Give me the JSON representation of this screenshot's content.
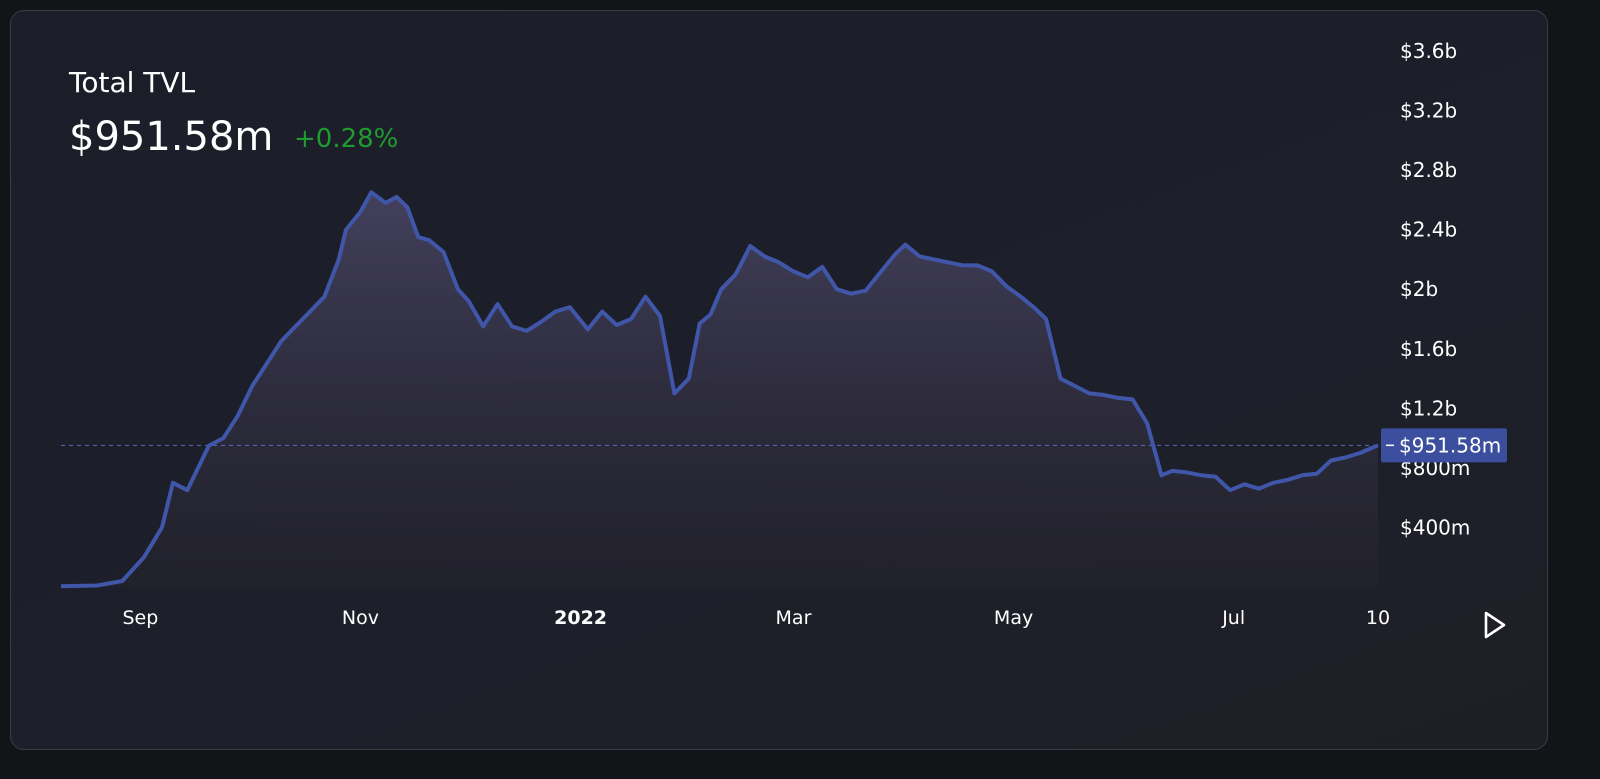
{
  "header": {
    "title": "Total TVL",
    "value": "$951.58m",
    "change": "+0.28%"
  },
  "colors": {
    "line": "#4056a8",
    "positive": "#1f9b2f",
    "label_bg": "#3c4f9f"
  },
  "current_label": "$951.58m",
  "icons": {
    "play": "play-icon"
  },
  "chart_data": {
    "type": "area",
    "title": "Total TVL",
    "ylim": [
      0,
      3600000000
    ],
    "y_ticks": [
      "$3.6b",
      "$3.2b",
      "$2.8b",
      "$2.4b",
      "$2b",
      "$1.6b",
      "$1.2b",
      "$800m",
      "$400m"
    ],
    "x_ticks": [
      "Sep",
      "Nov",
      "2022",
      "Mar",
      "May",
      "Jul",
      "10"
    ],
    "current_value": 951580000,
    "series": [
      {
        "x": [
          "2021-08-10",
          "2021-08-20",
          "2021-08-27",
          "2021-09-02",
          "2021-09-07",
          "2021-09-10",
          "2021-09-14",
          "2021-09-17",
          "2021-09-20",
          "2021-09-24",
          "2021-09-28",
          "2021-10-02",
          "2021-10-06",
          "2021-10-10",
          "2021-10-14",
          "2021-10-18",
          "2021-10-22",
          "2021-10-26",
          "2021-10-28",
          "2021-11-01",
          "2021-11-04",
          "2021-11-08",
          "2021-11-11",
          "2021-11-14",
          "2021-11-17",
          "2021-11-20",
          "2021-11-24",
          "2021-11-28",
          "2021-12-01",
          "2021-12-05",
          "2021-12-09",
          "2021-12-13",
          "2021-12-17",
          "2021-12-21",
          "2021-12-25",
          "2021-12-29",
          "2022-01-03",
          "2022-01-07",
          "2022-01-11",
          "2022-01-15",
          "2022-01-19",
          "2022-01-23",
          "2022-01-27",
          "2022-01-31",
          "2022-02-03",
          "2022-02-06",
          "2022-02-09",
          "2022-02-13",
          "2022-02-17",
          "2022-02-21",
          "2022-02-25",
          "2022-03-01",
          "2022-03-05",
          "2022-03-09",
          "2022-03-13",
          "2022-03-17",
          "2022-03-21",
          "2022-03-25",
          "2022-03-29",
          "2022-04-01",
          "2022-04-05",
          "2022-04-09",
          "2022-04-13",
          "2022-04-17",
          "2022-04-21",
          "2022-04-25",
          "2022-04-29",
          "2022-05-03",
          "2022-05-07",
          "2022-05-10",
          "2022-05-14",
          "2022-05-18",
          "2022-05-22",
          "2022-05-26",
          "2022-05-30",
          "2022-06-03",
          "2022-06-07",
          "2022-06-11",
          "2022-06-14",
          "2022-06-18",
          "2022-06-22",
          "2022-06-26",
          "2022-06-30",
          "2022-07-04",
          "2022-07-08",
          "2022-07-12",
          "2022-07-16",
          "2022-07-20",
          "2022-07-24",
          "2022-07-28",
          "2022-08-01",
          "2022-08-05",
          "2022-08-10"
        ],
        "y": [
          5000000,
          10000000,
          40000000,
          200000000,
          400000000,
          700000000,
          650000000,
          800000000,
          950000000,
          1000000000,
          1150000000,
          1350000000,
          1500000000,
          1650000000,
          1750000000,
          1850000000,
          1950000000,
          2200000000,
          2400000000,
          2520000000,
          2650000000,
          2580000000,
          2620000000,
          2550000000,
          2350000000,
          2330000000,
          2250000000,
          2000000000,
          1920000000,
          1750000000,
          1900000000,
          1750000000,
          1720000000,
          1780000000,
          1850000000,
          1880000000,
          1730000000,
          1850000000,
          1760000000,
          1800000000,
          1950000000,
          1820000000,
          1300000000,
          1400000000,
          1770000000,
          1830000000,
          2000000000,
          2100000000,
          2290000000,
          2220000000,
          2180000000,
          2120000000,
          2080000000,
          2150000000,
          2000000000,
          1970000000,
          1990000000,
          2110000000,
          2230000000,
          2300000000,
          2220000000,
          2200000000,
          2180000000,
          2160000000,
          2160000000,
          2120000000,
          2020000000,
          1950000000,
          1870000000,
          1800000000,
          1400000000,
          1350000000,
          1300000000,
          1290000000,
          1270000000,
          1260000000,
          1100000000,
          750000000,
          780000000,
          770000000,
          750000000,
          740000000,
          650000000,
          690000000,
          660000000,
          700000000,
          720000000,
          750000000,
          760000000,
          850000000,
          870000000,
          900000000,
          951580000
        ]
      }
    ]
  }
}
